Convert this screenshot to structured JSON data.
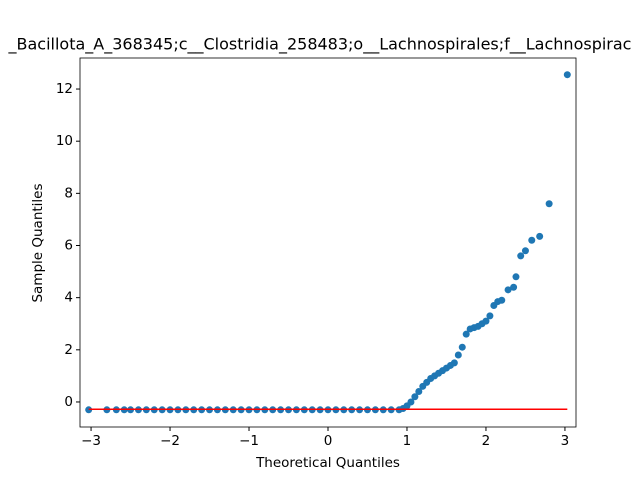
{
  "chart_data": {
    "type": "scatter",
    "title": "_Bacillota_A_368345;c__Clostridia_258483;o__Lachnospirales;f__Lachnospirac",
    "x_label": "Theoretical Quantiles",
    "y_label": "Sample Quantiles",
    "xlim": [
      -3.14,
      3.14
    ],
    "ylim": [
      -0.96,
      13.19
    ],
    "xticks": [
      {
        "value": -3,
        "label": "−3"
      },
      {
        "value": -2,
        "label": "−2"
      },
      {
        "value": -1,
        "label": "−1"
      },
      0,
      1,
      2,
      3
    ],
    "yticks": [
      0,
      2,
      4,
      6,
      8,
      10,
      12
    ],
    "series": [
      {
        "color": "#1f77b4",
        "x": [
          -3.03,
          -2.8,
          -2.68,
          -2.58,
          -2.5,
          -2.4,
          -2.3,
          -2.2,
          -2.1,
          -2.0,
          -1.9,
          -1.8,
          -1.7,
          -1.6,
          -1.5,
          -1.4,
          -1.3,
          -1.2,
          -1.1,
          -1.0,
          -0.9,
          -0.8,
          -0.7,
          -0.6,
          -0.5,
          -0.4,
          -0.3,
          -0.2,
          -0.1,
          0,
          0.1,
          0.2,
          0.3,
          0.4,
          0.5,
          0.6,
          0.7,
          0.8,
          0.9,
          0.95,
          1.0,
          1.05,
          1.1,
          1.15,
          1.2,
          1.25,
          1.3,
          1.35,
          1.4,
          1.45,
          1.5,
          1.55,
          1.6,
          1.65,
          1.7,
          1.75,
          1.8,
          1.85,
          1.9,
          1.95,
          2.0,
          2.05,
          2.1,
          2.15,
          2.2,
          2.28,
          2.35,
          2.38,
          2.44,
          2.5,
          2.58,
          2.68,
          2.8,
          3.03
        ],
        "values": [
          -0.3,
          -0.3,
          -0.3,
          -0.3,
          -0.3,
          -0.3,
          -0.3,
          -0.3,
          -0.3,
          -0.3,
          -0.3,
          -0.3,
          -0.3,
          -0.3,
          -0.3,
          -0.3,
          -0.3,
          -0.3,
          -0.3,
          -0.3,
          -0.3,
          -0.3,
          -0.3,
          -0.3,
          -0.3,
          -0.3,
          -0.3,
          -0.3,
          -0.3,
          -0.3,
          -0.3,
          -0.3,
          -0.3,
          -0.3,
          -0.3,
          -0.3,
          -0.3,
          -0.3,
          -0.3,
          -0.25,
          -0.15,
          0.0,
          0.2,
          0.4,
          0.6,
          0.75,
          0.9,
          1.0,
          1.1,
          1.2,
          1.3,
          1.4,
          1.5,
          1.8,
          2.1,
          2.6,
          2.8,
          2.85,
          2.9,
          3.0,
          3.1,
          3.3,
          3.7,
          3.85,
          3.9,
          4.3,
          4.4,
          4.8,
          5.6,
          5.8,
          6.2,
          6.35,
          7.6,
          12.55
        ]
      }
    ],
    "reference_line": {
      "color": "#ff0000",
      "x": [
        -3.03,
        3.03
      ],
      "values": [
        -0.28,
        -0.28
      ]
    }
  }
}
